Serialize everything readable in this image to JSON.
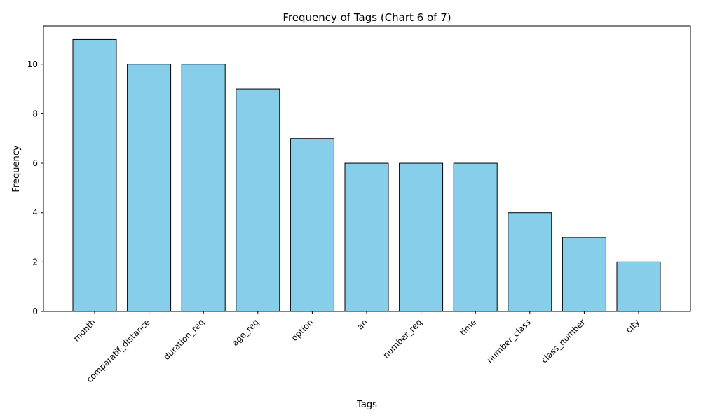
{
  "chart_data": {
    "type": "bar",
    "title": "Frequency of Tags (Chart 6 of 7)",
    "xlabel": "Tags",
    "ylabel": "Frequency",
    "categories": [
      "month",
      "comparatif_distance",
      "duration_req",
      "age_req",
      "option",
      "an",
      "number_req",
      "time",
      "number_class",
      "class_number",
      "city"
    ],
    "values": [
      11,
      10,
      10,
      9,
      7,
      6,
      6,
      6,
      4,
      3,
      2
    ],
    "ylim": [
      0,
      11.55
    ],
    "yticks": [
      0,
      2,
      4,
      6,
      8,
      10
    ],
    "grid": false,
    "legend": "none",
    "bar_color": "#87ceeb",
    "edge_color": "#000000"
  }
}
